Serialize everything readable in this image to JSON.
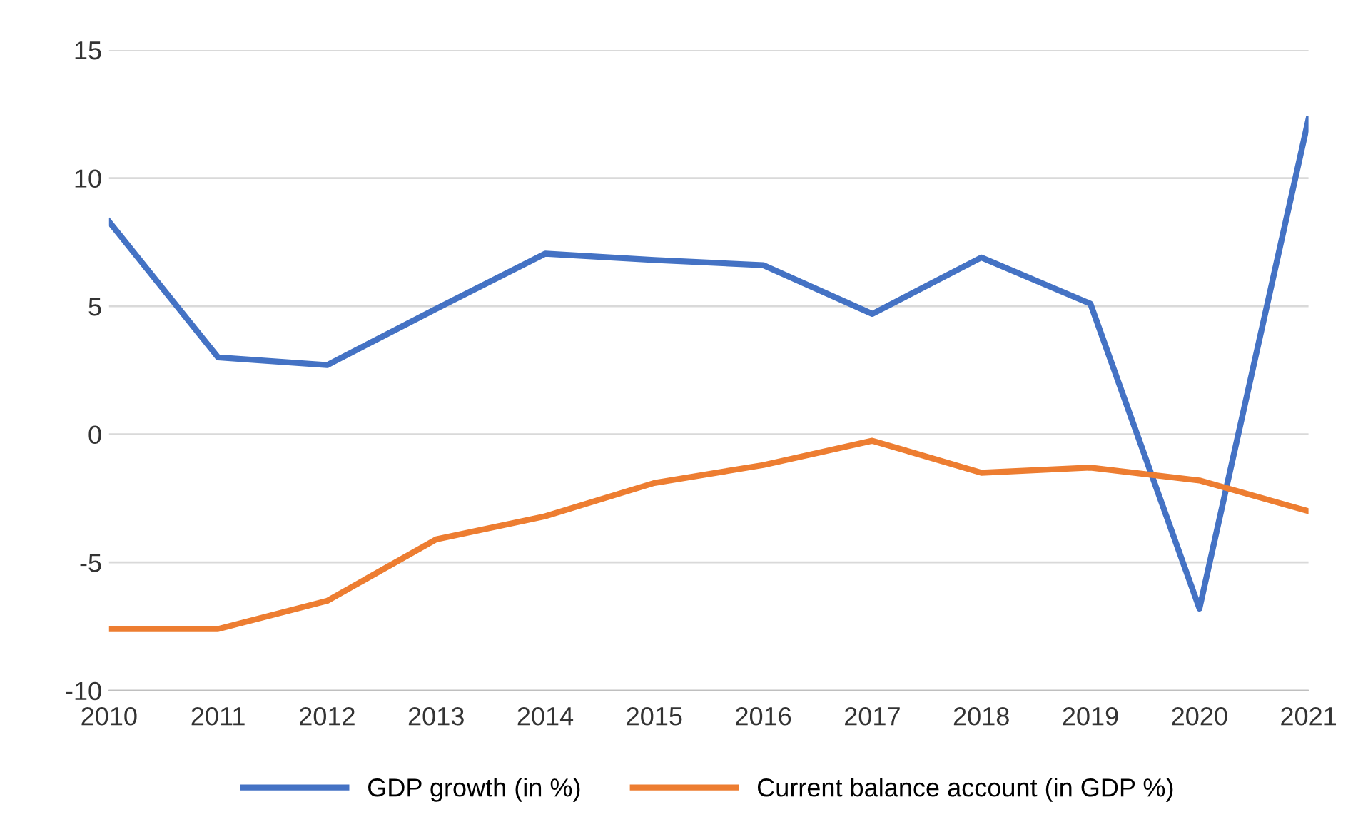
{
  "chart_data": {
    "type": "line",
    "categories": [
      "2010",
      "2011",
      "2012",
      "2013",
      "2014",
      "2015",
      "2016",
      "2017",
      "2018",
      "2019",
      "2020",
      "2021"
    ],
    "series": [
      {
        "name": "GDP growth (in %)",
        "color": "#4472c4",
        "values": [
          8.3,
          3.0,
          2.7,
          4.9,
          7.05,
          6.8,
          6.6,
          4.7,
          6.9,
          5.1,
          -6.8,
          12.3
        ]
      },
      {
        "name": "Current balance account (in GDP %)",
        "color": "#ed7d31",
        "values": [
          -7.6,
          -7.6,
          -6.5,
          -4.1,
          -3.2,
          -1.9,
          -1.2,
          -0.25,
          -1.5,
          -1.3,
          -1.8,
          -3.0
        ]
      }
    ],
    "ylim": [
      -10,
      15
    ],
    "yticks": [
      -10,
      -5,
      0,
      5,
      10,
      15
    ],
    "grid": "y",
    "legend": "bottom",
    "marker": "none",
    "line_style": "solid"
  }
}
